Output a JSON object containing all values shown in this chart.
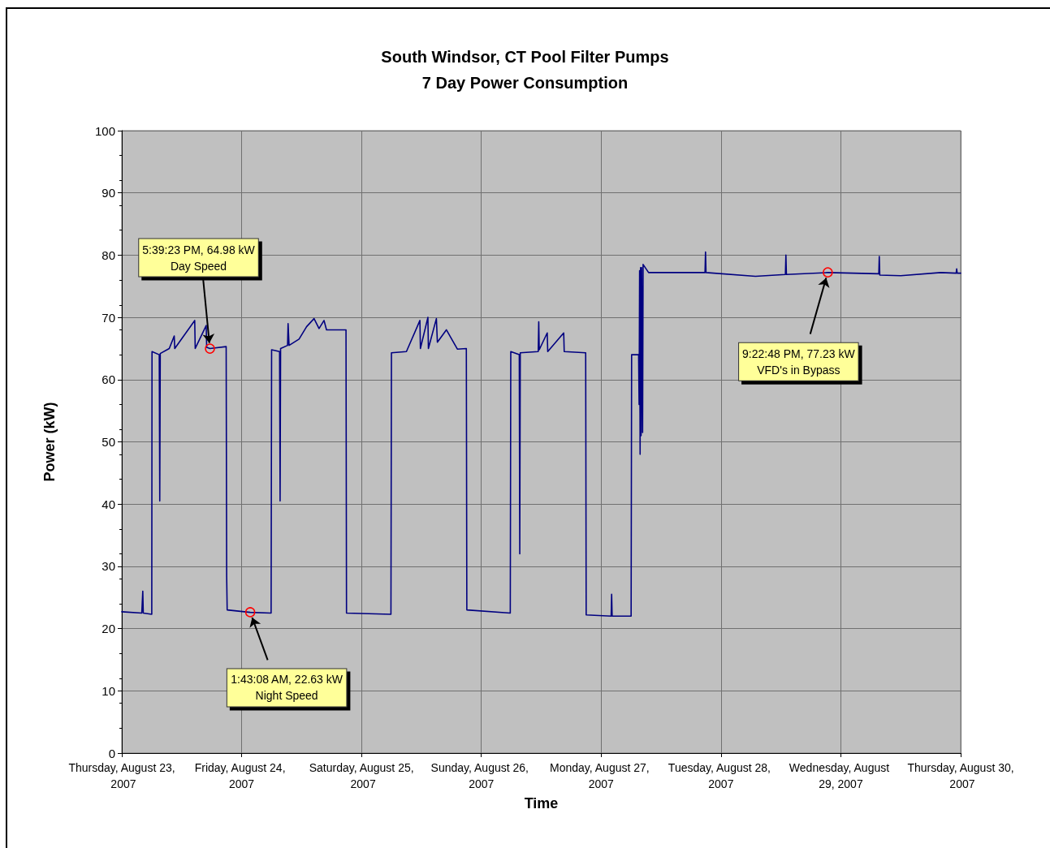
{
  "chart_data": {
    "type": "line",
    "title": "South Windsor, CT Pool Filter Pumps",
    "subtitle": "7 Day Power Consumption",
    "xlabel": "Time",
    "ylabel": "Power (kW)",
    "x": [
      "2007-08-23T00:00",
      "2007-08-23T04:00",
      "2007-08-23T04:12",
      "2007-08-23T04:18",
      "2007-08-23T06:00",
      "2007-08-23T06:03",
      "2007-08-23T07:30",
      "2007-08-23T07:36",
      "2007-08-23T07:42",
      "2007-08-23T09:30",
      "2007-08-23T10:30",
      "2007-08-23T10:36",
      "2007-08-23T14:36",
      "2007-08-23T14:42",
      "2007-08-23T16:54",
      "2007-08-23T17:00",
      "2007-08-23T17:39",
      "2007-08-23T20:54",
      "2007-08-23T21:00",
      "2007-08-23T21:06",
      "2007-08-24T01:43",
      "2007-08-24T05:54",
      "2007-08-24T06:00",
      "2007-08-24T07:36",
      "2007-08-24T07:42",
      "2007-08-24T07:48",
      "2007-08-24T09:12",
      "2007-08-24T09:18",
      "2007-08-24T09:30",
      "2007-08-24T11:30",
      "2007-08-24T13:00",
      "2007-08-24T14:30",
      "2007-08-24T15:30",
      "2007-08-24T16:30",
      "2007-08-24T17:00",
      "2007-08-24T20:54",
      "2007-08-24T21:00",
      "2007-08-25T05:54",
      "2007-08-25T06:00",
      "2007-08-25T09:00",
      "2007-08-25T11:42",
      "2007-08-25T11:48",
      "2007-08-25T13:18",
      "2007-08-25T13:24",
      "2007-08-25T15:00",
      "2007-08-25T15:12",
      "2007-08-25T17:00",
      "2007-08-25T19:12",
      "2007-08-25T21:00",
      "2007-08-25T21:06",
      "2007-08-26T05:48",
      "2007-08-26T05:54",
      "2007-08-26T07:36",
      "2007-08-26T07:42",
      "2007-08-26T07:48",
      "2007-08-26T11:24",
      "2007-08-26T11:30",
      "2007-08-26T11:36",
      "2007-08-26T13:12",
      "2007-08-26T13:18",
      "2007-08-26T16:30",
      "2007-08-26T16:36",
      "2007-08-26T20:54",
      "2007-08-26T21:00",
      "2007-08-27T02:00",
      "2007-08-27T02:06",
      "2007-08-27T02:12",
      "2007-08-27T06:00",
      "2007-08-27T06:06",
      "2007-08-27T07:30",
      "2007-08-27T07:36",
      "2007-08-27T07:42",
      "2007-08-27T07:48",
      "2007-08-27T07:54",
      "2007-08-27T08:00",
      "2007-08-27T08:06",
      "2007-08-27T08:18",
      "2007-08-27T08:24",
      "2007-08-27T09:30",
      "2007-08-27T20:48",
      "2007-08-27T20:54",
      "2007-08-27T21:00",
      "2007-08-28T06:54",
      "2007-08-28T12:54",
      "2007-08-28T13:00",
      "2007-08-28T13:06",
      "2007-08-28T21:23",
      "2007-08-29T07:36",
      "2007-08-29T07:42",
      "2007-08-29T07:48",
      "2007-08-29T12:00",
      "2007-08-29T20:00",
      "2007-08-29T23:06",
      "2007-08-29T23:12",
      "2007-08-29T23:18",
      "2007-08-30T00:00"
    ],
    "values": [
      22.7,
      22.5,
      26,
      22.5,
      22.3,
      64.5,
      64,
      40.5,
      64.2,
      65,
      67,
      65,
      69.5,
      65,
      68.7,
      65.2,
      65,
      65.3,
      28.5,
      23,
      22.6,
      22.5,
      64.8,
      64.5,
      40.5,
      65,
      65.5,
      69,
      65.5,
      66.5,
      68.5,
      69.8,
      68.2,
      69.5,
      68,
      68,
      22.5,
      22.3,
      64.3,
      64.5,
      69.5,
      65,
      70,
      65,
      69.8,
      66,
      68,
      64.9,
      65,
      23,
      22.5,
      64.5,
      64,
      32,
      64.3,
      64.5,
      69.3,
      64.8,
      67.5,
      64.5,
      67.5,
      64.5,
      64.3,
      22.2,
      22,
      25.5,
      22,
      22,
      64,
      64,
      56,
      77.5,
      48,
      78,
      51,
      78,
      51.5,
      78.5,
      77.2,
      77.2,
      80.5,
      77.2,
      76.6,
      76.9,
      80,
      76.9,
      77.2,
      77,
      79.8,
      76.8,
      76.7,
      77.2,
      77.1,
      77.8,
      77.1,
      77.1
    ],
    "color": "#000080",
    "marker": "none",
    "line_style": "solid",
    "grid": true,
    "xlim": [
      "2007-08-23",
      "2007-08-30"
    ],
    "xticks": [
      {
        "value": "2007-08-23",
        "label": "Thursday, August 23, 2007"
      },
      {
        "value": "2007-08-24",
        "label": "Friday, August 24, 2007"
      },
      {
        "value": "2007-08-25",
        "label": "Saturday, August 25, 2007"
      },
      {
        "value": "2007-08-26",
        "label": "Sunday, August 26, 2007"
      },
      {
        "value": "2007-08-27",
        "label": "Monday, August 27, 2007"
      },
      {
        "value": "2007-08-28",
        "label": "Tuesday, August 28, 2007"
      },
      {
        "value": "2007-08-29",
        "label": "Wednesday, August 29, 2007"
      },
      {
        "value": "2007-08-30",
        "label": "Thursday, August 30, 2007"
      }
    ],
    "ylim": [
      0,
      100
    ],
    "yticks": [
      0,
      10,
      20,
      30,
      40,
      50,
      60,
      70,
      80,
      90,
      100
    ],
    "annotations": [
      {
        "text": "5:39:23 PM, 64.98 kW\nDay Speed",
        "x": "2007-08-23T17:39",
        "y": 64.98
      },
      {
        "text": "1:43:08 AM, 22.63 kW\nNight Speed",
        "x": "2007-08-24T01:43",
        "y": 22.63
      },
      {
        "text": "9:22:48 PM, 77.23 kW\nVFD's in Bypass",
        "x": "2007-08-28T21:23",
        "y": 77.23
      }
    ]
  }
}
